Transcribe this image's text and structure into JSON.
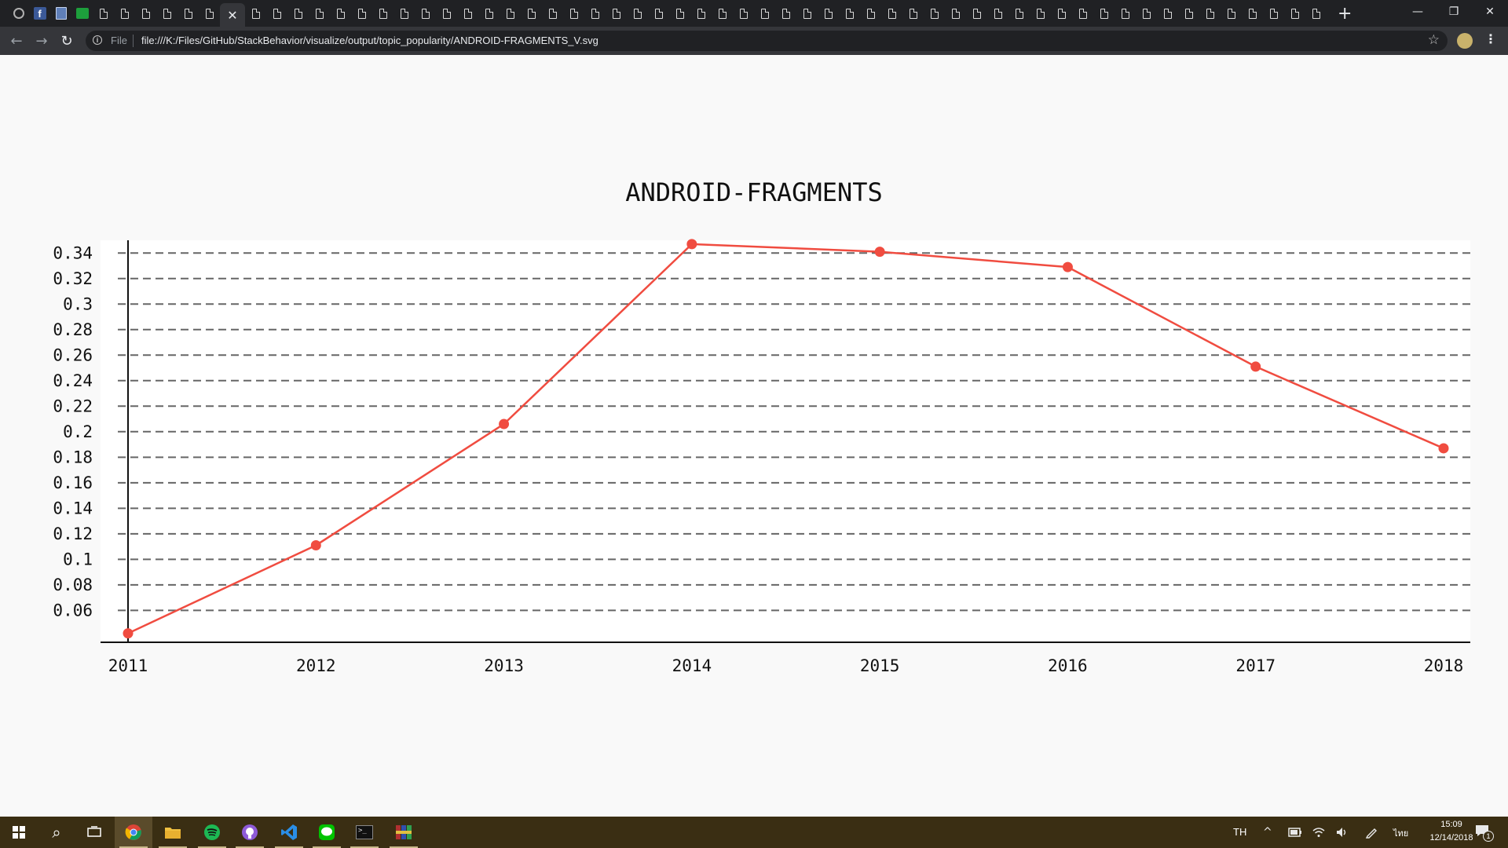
{
  "browser": {
    "url_scheme": "File",
    "url": "file:///K:/Files/GitHub/StackBehavior/visualize/output/topic_popularity/ANDROID-FRAGMENTS_V.svg",
    "fb_letter": "f",
    "close_glyph": "✕",
    "new_tab_glyph": "+",
    "back_glyph": "←",
    "forward_glyph": "→",
    "reload_glyph": "↻",
    "info_glyph": "i",
    "star_glyph": "☆",
    "menu_glyph": "⋮",
    "minimize_glyph": "—",
    "restore_glyph": "❐",
    "window_close_glyph": "✕"
  },
  "chart_data": {
    "type": "line",
    "title": "ANDROID-FRAGMENTS",
    "xlabel": "",
    "ylabel": "",
    "x": [
      "2011",
      "2012",
      "2013",
      "2014",
      "2015",
      "2016",
      "2017",
      "2018"
    ],
    "series": [
      {
        "values": [
          0.042,
          0.111,
          0.206,
          0.347,
          0.341,
          0.329,
          0.251,
          0.187
        ],
        "color": "#f04c40"
      }
    ],
    "yticks": [
      "0.06",
      "0.08",
      "0.1",
      "0.12",
      "0.14",
      "0.16",
      "0.18",
      "0.2",
      "0.22",
      "0.24",
      "0.26",
      "0.28",
      "0.3",
      "0.32",
      "0.34"
    ],
    "ylim": [
      0.035,
      0.35
    ],
    "grid": "horizontal-dashed",
    "legend": "none"
  },
  "taskbar": {
    "language": "TH",
    "time": "15:09",
    "date": "12/14/2018",
    "keyboard_label": "ไทย",
    "notification_count": "1",
    "chevron_glyph": "^",
    "search_glyph": "⌕",
    "cmd_glyph": ">_"
  }
}
